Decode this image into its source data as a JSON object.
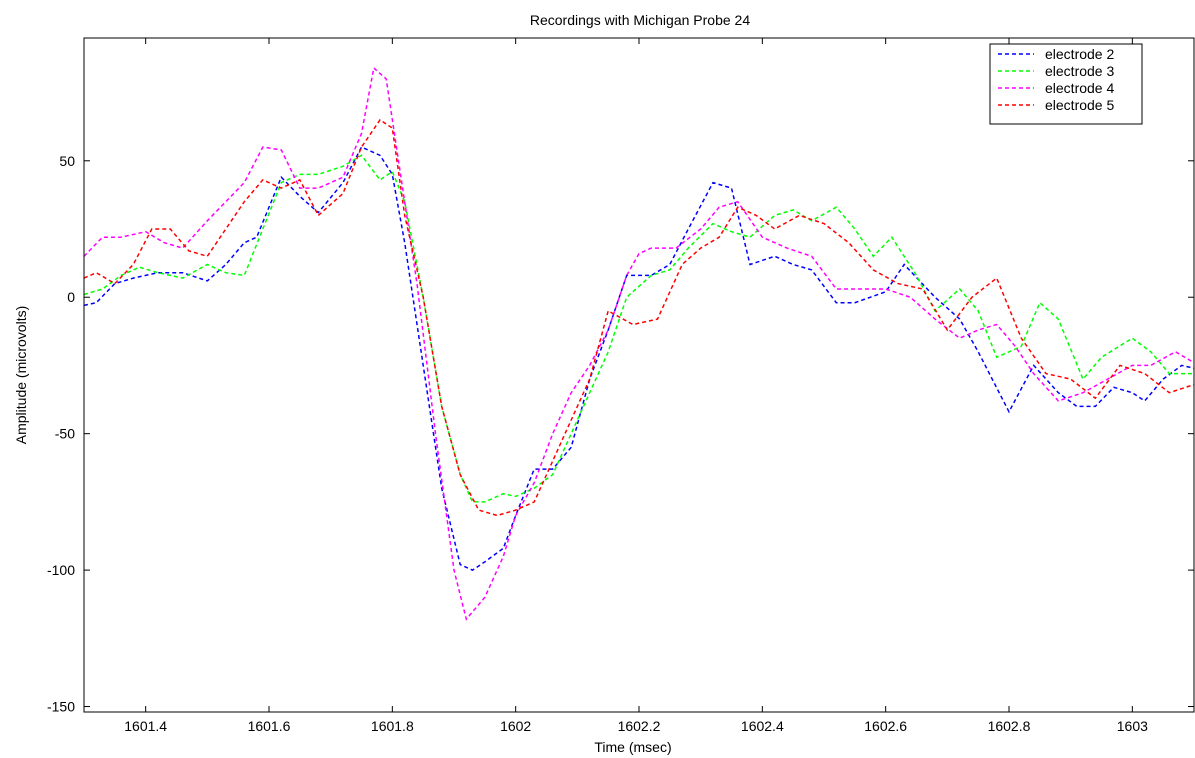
{
  "chart_data": {
    "type": "line",
    "title": "Recordings with Michigan Probe 24",
    "xlabel": "Time (msec)",
    "ylabel": "Amplitude (microvolts)",
    "xlim": [
      1601.3,
      1603.1
    ],
    "ylim": [
      -152,
      95
    ],
    "xticks": [
      1601.4,
      1601.6,
      1601.8,
      1602,
      1602.2,
      1602.4,
      1602.6,
      1602.8,
      1603
    ],
    "xtick_labels": [
      "1601.4",
      "1601.6",
      "1601.8",
      "1602",
      "1602.2",
      "1602.4",
      "1602.6",
      "1602.8",
      "1603"
    ],
    "yticks": [
      50,
      0,
      -50,
      -100,
      -150
    ],
    "ytick_labels": [
      "50",
      "0",
      "-50",
      "-100",
      "-150"
    ],
    "grid": false,
    "legend_position": "top-right",
    "line_style": "dashed",
    "series": [
      {
        "name": "electrode 2",
        "color": "#0000ff",
        "x": [
          1601.3,
          1601.32,
          1601.35,
          1601.38,
          1601.42,
          1601.46,
          1601.5,
          1601.53,
          1601.56,
          1601.58,
          1601.62,
          1601.65,
          1601.68,
          1601.72,
          1601.75,
          1601.78,
          1601.8,
          1601.82,
          1601.85,
          1601.88,
          1601.91,
          1601.93,
          1601.95,
          1601.98,
          1602,
          1602.03,
          1602.06,
          1602.09,
          1602.12,
          1602.15,
          1602.18,
          1602.22,
          1602.25,
          1602.28,
          1602.32,
          1602.35,
          1602.38,
          1602.42,
          1602.45,
          1602.48,
          1602.52,
          1602.55,
          1602.6,
          1602.63,
          1602.68,
          1602.72,
          1602.75,
          1602.8,
          1602.84,
          1602.88,
          1602.91,
          1602.94,
          1602.97,
          1603,
          1603.02,
          1603.05,
          1603.08,
          1603.1
        ],
        "values": [
          -3,
          -2,
          5,
          7,
          9,
          9,
          6,
          12,
          20,
          22,
          44,
          37,
          31,
          42,
          55,
          52,
          45,
          20,
          -25,
          -70,
          -98,
          -100,
          -97,
          -92,
          -80,
          -63,
          -63,
          -55,
          -30,
          -12,
          8,
          8,
          12,
          25,
          42,
          40,
          12,
          15,
          12,
          10,
          -2,
          -2,
          2,
          12,
          0,
          -8,
          -20,
          -42,
          -25,
          -35,
          -40,
          -40,
          -33,
          -35,
          -38,
          -30,
          -25,
          -26
        ]
      },
      {
        "name": "electrode 3",
        "color": "#00ff00",
        "x": [
          1601.3,
          1601.33,
          1601.36,
          1601.39,
          1601.42,
          1601.46,
          1601.5,
          1601.53,
          1601.56,
          1601.59,
          1601.62,
          1601.65,
          1601.68,
          1601.72,
          1601.75,
          1601.78,
          1601.8,
          1601.82,
          1601.85,
          1601.88,
          1601.91,
          1601.93,
          1601.95,
          1601.98,
          1602,
          1602.03,
          1602.06,
          1602.09,
          1602.12,
          1602.15,
          1602.18,
          1602.22,
          1602.25,
          1602.28,
          1602.32,
          1602.35,
          1602.38,
          1602.42,
          1602.45,
          1602.48,
          1602.52,
          1602.55,
          1602.58,
          1602.61,
          1602.65,
          1602.68,
          1602.72,
          1602.75,
          1602.78,
          1602.82,
          1602.85,
          1602.88,
          1602.92,
          1602.95,
          1603,
          1603.03,
          1603.06,
          1603.1
        ],
        "values": [
          1,
          3,
          8,
          11,
          9,
          7,
          12,
          9,
          8,
          25,
          42,
          45,
          45,
          48,
          52,
          43,
          46,
          35,
          0,
          -40,
          -65,
          -75,
          -75,
          -72,
          -73,
          -70,
          -65,
          -50,
          -35,
          -20,
          0,
          8,
          10,
          18,
          27,
          24,
          22,
          30,
          32,
          28,
          33,
          25,
          15,
          22,
          8,
          -5,
          3,
          -5,
          -22,
          -18,
          -2,
          -8,
          -30,
          -22,
          -15,
          -20,
          -28,
          -28
        ]
      },
      {
        "name": "electrode 4",
        "color": "#ff00ff",
        "x": [
          1601.3,
          1601.33,
          1601.36,
          1601.4,
          1601.43,
          1601.46,
          1601.5,
          1601.53,
          1601.56,
          1601.59,
          1601.62,
          1601.65,
          1601.68,
          1601.72,
          1601.75,
          1601.77,
          1601.79,
          1601.81,
          1601.84,
          1601.87,
          1601.9,
          1601.92,
          1601.95,
          1601.98,
          1602,
          1602.03,
          1602.06,
          1602.09,
          1602.12,
          1602.15,
          1602.18,
          1602.2,
          1602.22,
          1602.26,
          1602.3,
          1602.33,
          1602.36,
          1602.4,
          1602.44,
          1602.48,
          1602.52,
          1602.56,
          1602.6,
          1602.64,
          1602.68,
          1602.72,
          1602.75,
          1602.78,
          1602.81,
          1602.84,
          1602.88,
          1602.92,
          1602.96,
          1603,
          1603.03,
          1603.07,
          1603.1
        ],
        "values": [
          15,
          22,
          22,
          24,
          20,
          18,
          28,
          35,
          42,
          55,
          54,
          40,
          40,
          44,
          60,
          84,
          80,
          50,
          5,
          -50,
          -100,
          -118,
          -110,
          -95,
          -80,
          -68,
          -50,
          -35,
          -25,
          -12,
          8,
          16,
          18,
          18,
          25,
          33,
          35,
          22,
          18,
          15,
          3,
          3,
          3,
          0,
          -8,
          -15,
          -12,
          -10,
          -18,
          -28,
          -38,
          -35,
          -30,
          -25,
          -25,
          -20,
          -24
        ]
      },
      {
        "name": "electrode 5",
        "color": "#ff0000",
        "x": [
          1601.3,
          1601.32,
          1601.35,
          1601.38,
          1601.41,
          1601.44,
          1601.47,
          1601.5,
          1601.53,
          1601.56,
          1601.59,
          1601.62,
          1601.65,
          1601.68,
          1601.72,
          1601.75,
          1601.78,
          1601.8,
          1601.82,
          1601.85,
          1601.88,
          1601.91,
          1601.94,
          1601.97,
          1602,
          1602.03,
          1602.06,
          1602.09,
          1602.12,
          1602.15,
          1602.19,
          1602.23,
          1602.27,
          1602.3,
          1602.33,
          1602.36,
          1602.39,
          1602.42,
          1602.46,
          1602.5,
          1602.54,
          1602.58,
          1602.62,
          1602.66,
          1602.7,
          1602.74,
          1602.78,
          1602.82,
          1602.86,
          1602.9,
          1602.94,
          1602.98,
          1603.02,
          1603.06,
          1603.1
        ],
        "values": [
          7,
          9,
          5,
          12,
          25,
          25,
          17,
          15,
          25,
          35,
          43,
          40,
          43,
          30,
          38,
          55,
          65,
          62,
          30,
          0,
          -40,
          -65,
          -78,
          -80,
          -78,
          -75,
          -60,
          -45,
          -30,
          -5,
          -10,
          -8,
          12,
          18,
          22,
          33,
          30,
          25,
          30,
          27,
          20,
          10,
          5,
          3,
          -12,
          0,
          7,
          -15,
          -28,
          -30,
          -37,
          -25,
          -28,
          -35,
          -32
        ]
      }
    ]
  }
}
